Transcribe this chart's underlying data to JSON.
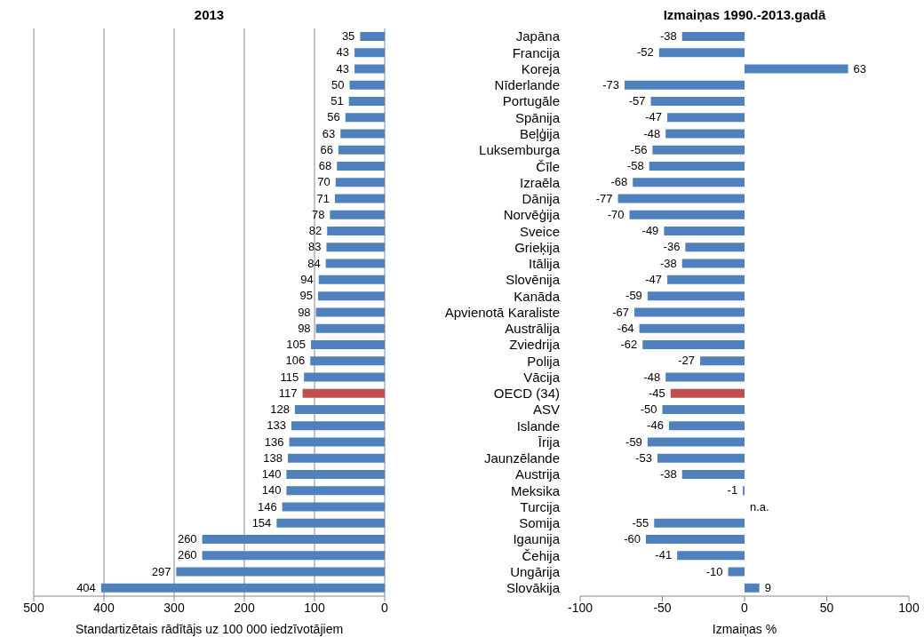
{
  "chart_data": [
    {
      "type": "bar",
      "orientation": "horizontal",
      "title": "2013",
      "xlabel": "Standartizētais rādītājs uz 100 000 iedzīvotājiem",
      "values": [
        35,
        43,
        43,
        50,
        51,
        56,
        63,
        66,
        68,
        70,
        71,
        78,
        82,
        83,
        84,
        94,
        95,
        98,
        98,
        105,
        106,
        115,
        117,
        128,
        133,
        136,
        138,
        140,
        140,
        146,
        154,
        260,
        260,
        297,
        404
      ],
      "colors": [
        "#4f81bd",
        "#4f81bd",
        "#4f81bd",
        "#4f81bd",
        "#4f81bd",
        "#4f81bd",
        "#4f81bd",
        "#4f81bd",
        "#4f81bd",
        "#4f81bd",
        "#4f81bd",
        "#4f81bd",
        "#4f81bd",
        "#4f81bd",
        "#4f81bd",
        "#4f81bd",
        "#4f81bd",
        "#4f81bd",
        "#4f81bd",
        "#4f81bd",
        "#4f81bd",
        "#4f81bd",
        "#c0504d",
        "#4f81bd",
        "#4f81bd",
        "#4f81bd",
        "#4f81bd",
        "#4f81bd",
        "#4f81bd",
        "#4f81bd",
        "#4f81bd",
        "#4f81bd",
        "#4f81bd",
        "#4f81bd",
        "#4f81bd"
      ],
      "xlim": [
        500,
        0
      ],
      "xticks": [
        500,
        400,
        300,
        200,
        100,
        0
      ],
      "grid": "x",
      "data_labels": true,
      "tick_labels": "x"
    },
    {
      "type": "bar",
      "orientation": "horizontal",
      "title": "Izmaiņas 1990.-2013.gadā",
      "xlabel": "Izmaiņas %",
      "categories": [
        "Japāna",
        "Francija",
        "Koreja",
        "Nīderlande",
        "Portugāle",
        "Spānija",
        "Beļģija",
        "Luksemburga",
        "Čīle",
        "Izraēla",
        "Dānija",
        "Norvēģija",
        "Sveice",
        "Grieķija",
        "Itālija",
        "Slovēnija",
        "Kanāda",
        "Apvienotā Karaliste",
        "Austrālija",
        "Zviedrija",
        "Polija",
        "Vācija",
        "OECD (34)",
        "ASV",
        "Islande",
        "Īrija",
        "Jaunzēlande",
        "Austrija",
        "Meksika",
        "Turcija",
        "Somija",
        "Igaunija",
        "Čehija",
        "Ungārija",
        "Slovākija"
      ],
      "values": [
        -38,
        -52,
        63,
        -73,
        -57,
        -47,
        -48,
        -56,
        -58,
        -68,
        -77,
        -70,
        -49,
        -36,
        -38,
        -47,
        -59,
        -67,
        -64,
        -62,
        -27,
        -48,
        -45,
        -50,
        -46,
        -59,
        -53,
        -38,
        -1,
        null,
        -55,
        -60,
        -41,
        -10,
        9
      ],
      "value_labels": [
        "-38",
        "-52",
        "63",
        "-73",
        "-57",
        "-47",
        "-48",
        "-56",
        "-58",
        "-68",
        "-77",
        "-70",
        "-49",
        "-36",
        "-38",
        "-47",
        "-59",
        "-67",
        "-64",
        "-62",
        "-27",
        "-48",
        "-45",
        "-50",
        "-46",
        "-59",
        "-53",
        "-38",
        "-1",
        "n.a.",
        "-55",
        "-60",
        "-41",
        "-10",
        "9"
      ],
      "colors": [
        "#4f81bd",
        "#4f81bd",
        "#4f81bd",
        "#4f81bd",
        "#4f81bd",
        "#4f81bd",
        "#4f81bd",
        "#4f81bd",
        "#4f81bd",
        "#4f81bd",
        "#4f81bd",
        "#4f81bd",
        "#4f81bd",
        "#4f81bd",
        "#4f81bd",
        "#4f81bd",
        "#4f81bd",
        "#4f81bd",
        "#4f81bd",
        "#4f81bd",
        "#4f81bd",
        "#4f81bd",
        "#c0504d",
        "#4f81bd",
        "#4f81bd",
        "#4f81bd",
        "#4f81bd",
        "#4f81bd",
        "#4f81bd",
        "#4f81bd",
        "#4f81bd",
        "#4f81bd",
        "#4f81bd",
        "#4f81bd",
        "#4f81bd"
      ],
      "xlim": [
        -100,
        100
      ],
      "xticks": [
        -100,
        -50,
        0,
        50,
        100
      ],
      "grid": false
    }
  ]
}
